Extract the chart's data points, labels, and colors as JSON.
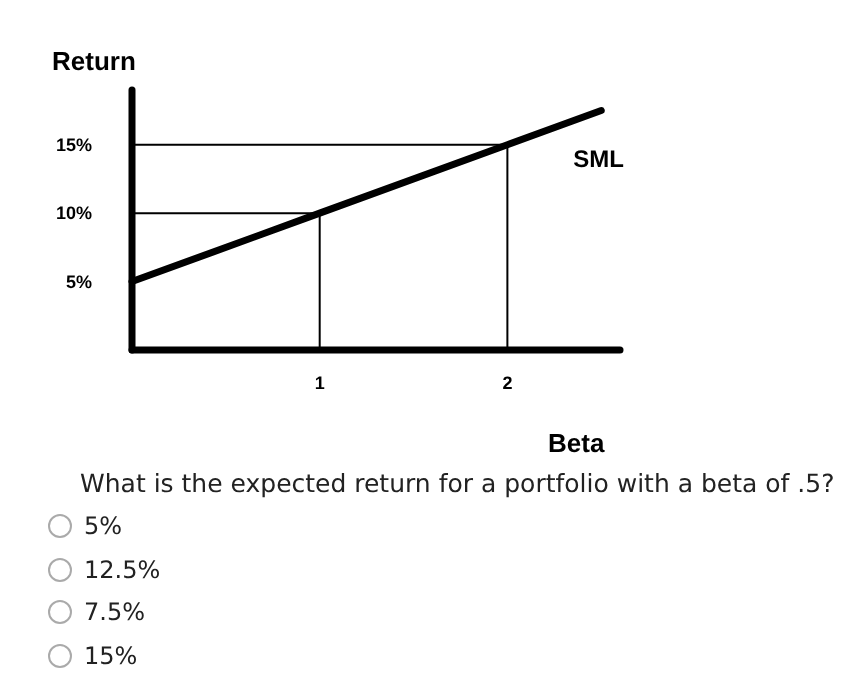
{
  "chart_data": {
    "type": "line",
    "xlabel": "Beta",
    "ylabel": "Return",
    "xlim": [
      0,
      2.6
    ],
    "ylim": [
      0,
      19
    ],
    "xticks": [
      1,
      2
    ],
    "yticks": [
      {
        "value": 5,
        "label": "5%"
      },
      {
        "value": 10,
        "label": "10%"
      },
      {
        "value": 15,
        "label": "15%"
      }
    ],
    "series": [
      {
        "name": "SML",
        "color": "#000000",
        "x": [
          0,
          1,
          2,
          2.5
        ],
        "values": [
          5,
          10,
          15,
          17.5
        ]
      },
      {
        "color": "#000000",
        "x": [
          0,
          1,
          1
        ],
        "values": [
          10,
          10,
          0
        ]
      },
      {
        "color": "#000000",
        "x": [
          0,
          2,
          2
        ],
        "values": [
          15,
          15,
          0
        ]
      }
    ],
    "grid": false,
    "legend": false,
    "marker": "none",
    "line_style": "solid",
    "annotations": [
      "What is the expected return for a portfolio with a beta of .5?",
      "5%",
      "12.5%",
      "7.5%",
      "15%"
    ]
  }
}
